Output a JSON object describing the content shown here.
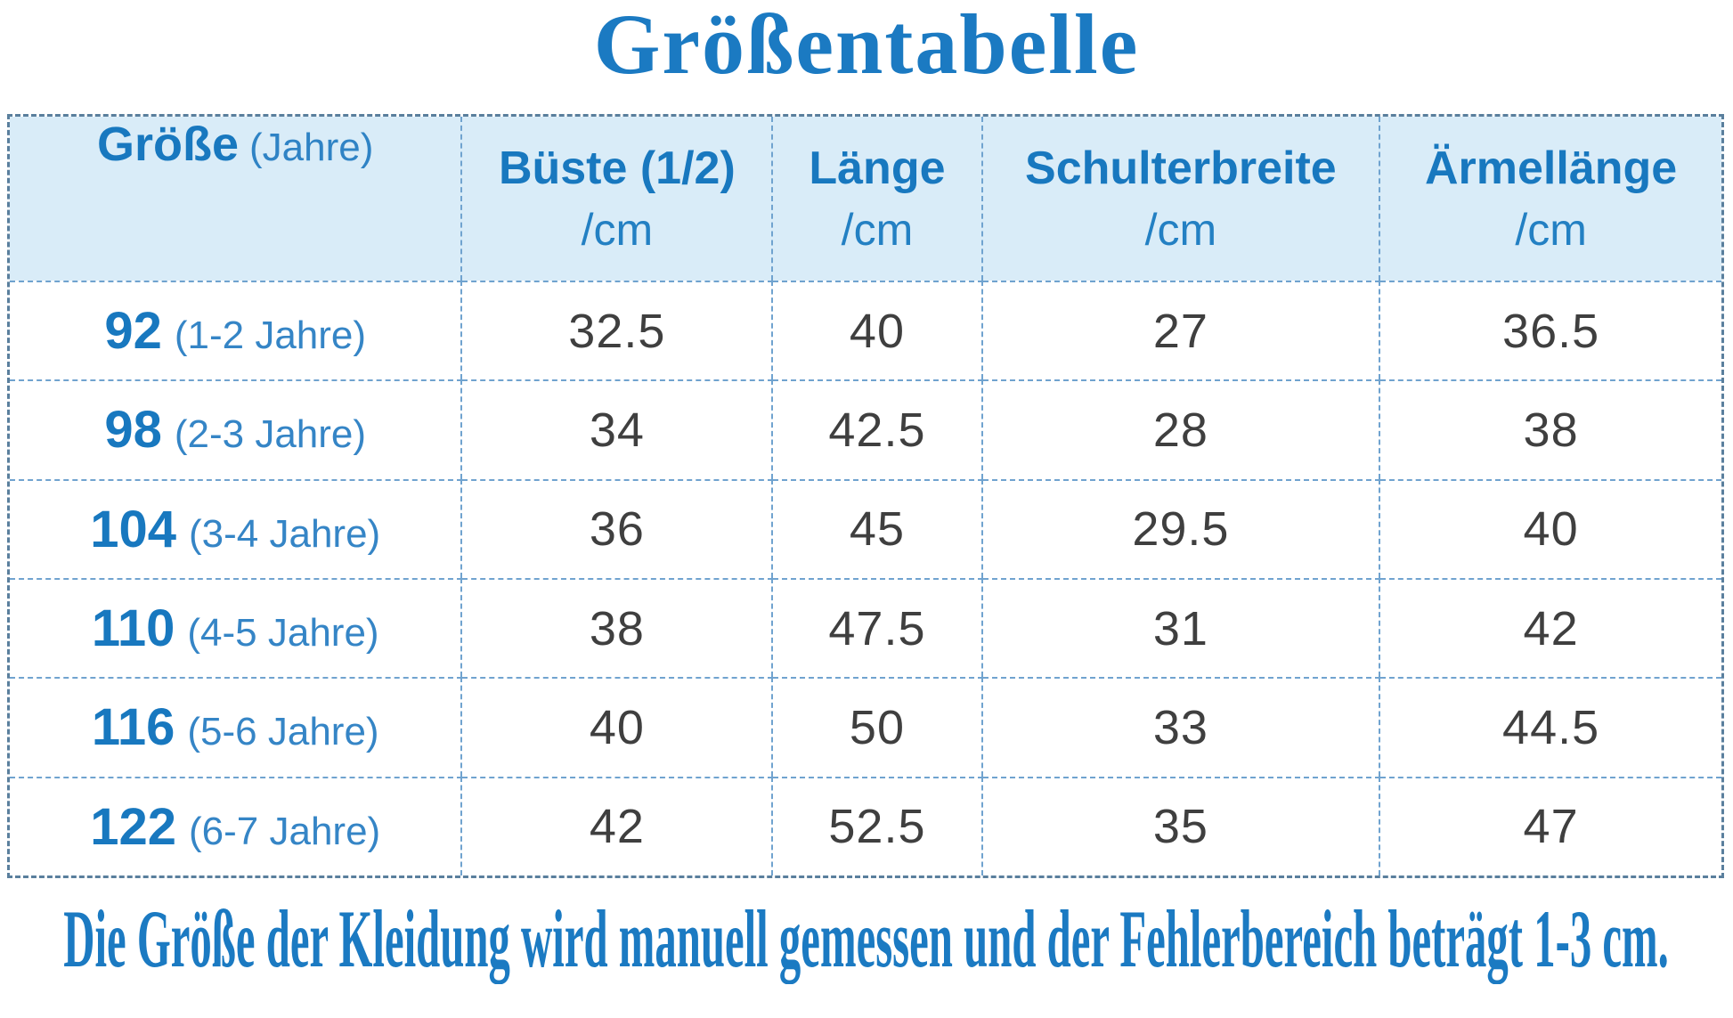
{
  "title": "Größentabelle",
  "note": "Die Größe der Kleidung wird manuell gemessen und der Fehlerbereich beträgt 1-3 cm.",
  "colors": {
    "accent_blue": "#1b7ac2",
    "header_text_blue": "#1878bf",
    "light_blue_text": "#3585c6",
    "header_bg": "#d9ecf8",
    "divider_blue": "#70a3cf",
    "outer_border": "#5a7f9d",
    "value_gray": "#3f3f3f"
  },
  "table": {
    "columns": [
      {
        "label": "Größe",
        "sublabel": "(Jahre)"
      },
      {
        "label": "Büste (1/2)",
        "unit": "/cm"
      },
      {
        "label": "Länge",
        "unit": "/cm"
      },
      {
        "label": "Schulterbreite",
        "unit": "/cm"
      },
      {
        "label": "Ärmellänge",
        "unit": "/cm"
      }
    ],
    "rows": [
      {
        "size": "92",
        "age": "(1-2 Jahre)",
        "bust": "32.5",
        "length": "40",
        "shoulder": "27",
        "sleeve": "36.5"
      },
      {
        "size": "98",
        "age": "(2-3 Jahre)",
        "bust": "34",
        "length": "42.5",
        "shoulder": "28",
        "sleeve": "38"
      },
      {
        "size": "104",
        "age": "(3-4 Jahre)",
        "bust": "36",
        "length": "45",
        "shoulder": "29.5",
        "sleeve": "40"
      },
      {
        "size": "110",
        "age": "(4-5 Jahre)",
        "bust": "38",
        "length": "47.5",
        "shoulder": "31",
        "sleeve": "42"
      },
      {
        "size": "116",
        "age": "(5-6 Jahre)",
        "bust": "40",
        "length": "50",
        "shoulder": "33",
        "sleeve": "44.5"
      },
      {
        "size": "122",
        "age": "(6-7 Jahre)",
        "bust": "42",
        "length": "52.5",
        "shoulder": "35",
        "sleeve": "47"
      }
    ]
  },
  "chart_data": {
    "type": "table",
    "title": "Größentabelle",
    "columns": [
      "Größe (Jahre)",
      "Büste (1/2) /cm",
      "Länge /cm",
      "Schulterbreite /cm",
      "Ärmellänge /cm"
    ],
    "rows": [
      [
        "92 (1-2 Jahre)",
        32.5,
        40,
        27,
        36.5
      ],
      [
        "98 (2-3 Jahre)",
        34,
        42.5,
        28,
        38
      ],
      [
        "104 (3-4 Jahre)",
        36,
        45,
        29.5,
        40
      ],
      [
        "110 (4-5 Jahre)",
        38,
        47.5,
        31,
        42
      ],
      [
        "116 (5-6 Jahre)",
        40,
        50,
        33,
        44.5
      ],
      [
        "122 (6-7 Jahre)",
        42,
        52.5,
        35,
        47
      ]
    ],
    "note": "Die Größe der Kleidung wird manuell gemessen und der Fehlerbereich beträgt 1-3 cm."
  }
}
